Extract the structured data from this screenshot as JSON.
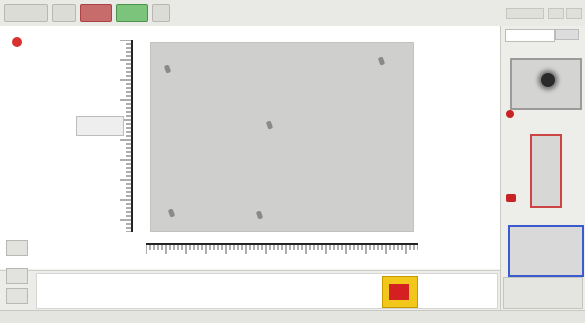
{
  "toolbar": {
    "buttons": [
      "",
      "",
      "",
      "",
      "",
      ""
    ],
    "right_items": [
      "",
      "",
      ""
    ]
  },
  "chart": {
    "title": "",
    "tooltip": ""
  },
  "right_panel": {
    "search_placeholder": "",
    "thumb2_label": "",
    "thumb2_caption": ""
  },
  "bottom": {
    "yellow_label": ""
  },
  "status": {
    "left": "",
    "right": ""
  },
  "colors": {
    "accent_red": "#d93030",
    "accent_green": "#7cc47c",
    "selection_blue": "#3a5bd0",
    "warning_yellow": "#f2c61a"
  },
  "icons": [
    "record-dot-icon",
    "marker-icon",
    "tool-icon"
  ]
}
